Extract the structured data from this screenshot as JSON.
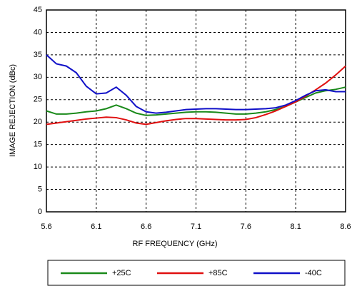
{
  "chart_data": {
    "type": "line",
    "xlabel": "RF FREQUENCY (GHz)",
    "ylabel": "IMAGE REJECTION (dBc)",
    "x": [
      5.6,
      5.7,
      5.8,
      5.9,
      6.0,
      6.1,
      6.2,
      6.3,
      6.4,
      6.5,
      6.6,
      6.7,
      6.8,
      6.9,
      7.0,
      7.1,
      7.2,
      7.3,
      7.4,
      7.5,
      7.6,
      7.7,
      7.8,
      7.9,
      8.0,
      8.1,
      8.2,
      8.3,
      8.4,
      8.5,
      8.6
    ],
    "series": [
      {
        "name": "+25C",
        "color": "#1a8a1a",
        "values": [
          22.5,
          21.8,
          21.8,
          22,
          22.3,
          22.5,
          23,
          23.8,
          23,
          22,
          21.5,
          21.6,
          21.8,
          22,
          22.2,
          22.3,
          22.3,
          22.2,
          22,
          21.8,
          21.8,
          22,
          22.3,
          22.8,
          23.5,
          24.5,
          25.5,
          26.5,
          27,
          27.3,
          27.8
        ]
      },
      {
        "name": "+85C",
        "color": "#e01010",
        "values": [
          19.5,
          19.8,
          20.1,
          20.4,
          20.7,
          20.9,
          21.1,
          21,
          20.5,
          19.8,
          19.5,
          19.9,
          20.3,
          20.6,
          20.8,
          20.8,
          20.7,
          20.6,
          20.5,
          20.5,
          20.6,
          21,
          21.7,
          22.5,
          23.5,
          24.5,
          25.8,
          27.2,
          28.7,
          30.5,
          32.5
        ]
      },
      {
        "name": "-40C",
        "color": "#1010c8",
        "values": [
          35,
          33,
          32.5,
          31,
          28,
          26.3,
          26.5,
          27.8,
          26,
          23.5,
          22.3,
          22,
          22.2,
          22.5,
          22.8,
          22.9,
          23,
          23,
          22.9,
          22.8,
          22.8,
          22.9,
          23,
          23.2,
          23.8,
          24.8,
          26,
          27,
          27.2,
          26.8,
          26.8
        ]
      }
    ],
    "xlim": [
      5.6,
      8.6
    ],
    "xticks": [
      5.6,
      6.1,
      6.6,
      7.1,
      7.6,
      8.1,
      8.6
    ],
    "ylim": [
      0,
      45
    ],
    "yticks": [
      0,
      5,
      10,
      15,
      20,
      25,
      30,
      35,
      40,
      45
    ],
    "grid": true,
    "legend": "bottom"
  }
}
